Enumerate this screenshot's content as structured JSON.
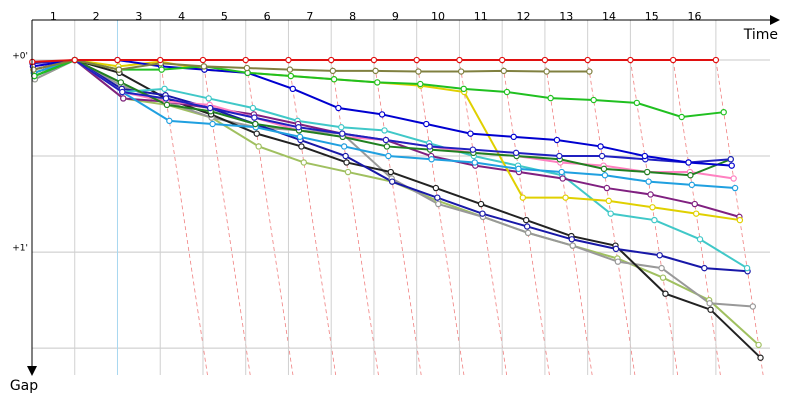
{
  "chart_data": {
    "type": "line",
    "x_label": "Time",
    "y_label": "Gap",
    "x": [
      0,
      1,
      2,
      3,
      4,
      5,
      6,
      7,
      8,
      9,
      10,
      11,
      12,
      13,
      14,
      15,
      16
    ],
    "xlim": [
      0,
      17.5
    ],
    "xticks": [
      {
        "value": 0.5,
        "label": "1"
      },
      {
        "value": 1.5,
        "label": "2"
      },
      {
        "value": 2.5,
        "label": "3"
      },
      {
        "value": 3.5,
        "label": "4"
      },
      {
        "value": 4.5,
        "label": "5"
      },
      {
        "value": 5.5,
        "label": "6"
      },
      {
        "value": 6.5,
        "label": "7"
      },
      {
        "value": 7.5,
        "label": "8"
      },
      {
        "value": 8.5,
        "label": "9"
      },
      {
        "value": 9.5,
        "label": "10"
      },
      {
        "value": 10.5,
        "label": "11"
      },
      {
        "value": 11.5,
        "label": "12"
      },
      {
        "value": 12.5,
        "label": "13"
      },
      {
        "value": 13.5,
        "label": "14"
      },
      {
        "value": 14.5,
        "label": "15"
      },
      {
        "value": 15.5,
        "label": "16"
      }
    ],
    "ylim": [
      -12.5,
      98.4
    ],
    "yticks": [
      {
        "value": 0,
        "label": "+0'"
      },
      {
        "value": 60,
        "label": "+1'"
      }
    ],
    "minor_gridlines": [
      30,
      90
    ],
    "series": [
      {
        "color": "#a0c060",
        "values": [
          6,
          0,
          12,
          14,
          18,
          27,
          32,
          35,
          38,
          44,
          49,
          54,
          58,
          62,
          68,
          75,
          89
        ]
      },
      {
        "color": "#999999",
        "values": [
          6,
          0,
          8,
          13,
          18,
          21,
          22,
          23,
          37,
          45,
          49,
          54,
          58,
          63,
          65,
          76,
          77
        ]
      },
      {
        "color": "#222222",
        "values": [
          4,
          0,
          4,
          12,
          17,
          23,
          27,
          32,
          35,
          40,
          45,
          50,
          55,
          58,
          73,
          78,
          93
        ]
      },
      {
        "color": "#1818a8",
        "values": [
          5,
          0,
          9,
          11,
          15,
          20,
          25,
          30,
          38,
          43,
          48,
          52,
          56,
          59,
          61,
          65,
          66
        ]
      },
      {
        "color": "#40c8c8",
        "values": [
          5,
          0,
          10,
          9,
          12,
          15,
          19,
          21,
          22,
          26,
          30,
          33,
          36,
          48,
          50,
          56,
          65
        ]
      },
      {
        "color": "#802080",
        "values": [
          3,
          0,
          12,
          13,
          15,
          17,
          20,
          23,
          25,
          30,
          33,
          35,
          37,
          40,
          42,
          45,
          49
        ]
      },
      {
        "color": "#e0d000",
        "values": [
          4,
          0,
          2,
          0.5,
          3,
          4,
          5,
          6,
          7,
          8,
          10,
          43,
          43,
          44,
          46,
          48,
          50
        ]
      },
      {
        "color": "#20a0e0",
        "values": [
          4,
          0,
          10,
          19,
          20,
          21,
          24,
          27,
          30,
          31,
          32,
          34,
          35,
          36,
          38,
          39,
          40
        ]
      },
      {
        "color": "#ff80c0",
        "values": [
          2,
          0,
          10,
          13,
          14,
          18,
          22,
          24,
          25,
          27,
          29,
          30,
          32,
          33,
          35,
          35,
          37
        ]
      },
      {
        "color": "#208020",
        "values": [
          5,
          0,
          7,
          14,
          16,
          20,
          22,
          24,
          27,
          28,
          29,
          30,
          31,
          34,
          35,
          36,
          31
        ]
      },
      {
        "color": "#2020c0",
        "values": [
          1,
          0,
          10,
          12,
          15,
          18,
          21,
          23,
          25,
          27,
          28,
          29,
          30,
          30,
          31,
          32,
          31
        ]
      },
      {
        "color": "#0000d0",
        "values": [
          2,
          0,
          0,
          2,
          3,
          4,
          9,
          15,
          17,
          20,
          23,
          24,
          25,
          27,
          30,
          32,
          33
        ]
      },
      {
        "color": "#20c020",
        "values": [
          5,
          0,
          3,
          3,
          2,
          4,
          5,
          6,
          7,
          7.5,
          9,
          10,
          11.9,
          12.5,
          13.4,
          17.8,
          16.3
        ]
      },
      {
        "color": "#808040",
        "values": [
          3,
          0,
          3,
          1,
          2,
          2.5,
          3,
          3.4,
          3.4,
          3.6,
          3.6,
          3.4,
          3.6,
          3.6,
          null,
          null,
          null
        ]
      },
      {
        "color": "#e01010",
        "values": [
          0.6,
          0,
          0,
          0,
          0,
          0,
          0,
          0,
          0,
          0,
          0,
          0,
          0,
          0,
          0,
          0,
          0
        ]
      }
    ]
  }
}
